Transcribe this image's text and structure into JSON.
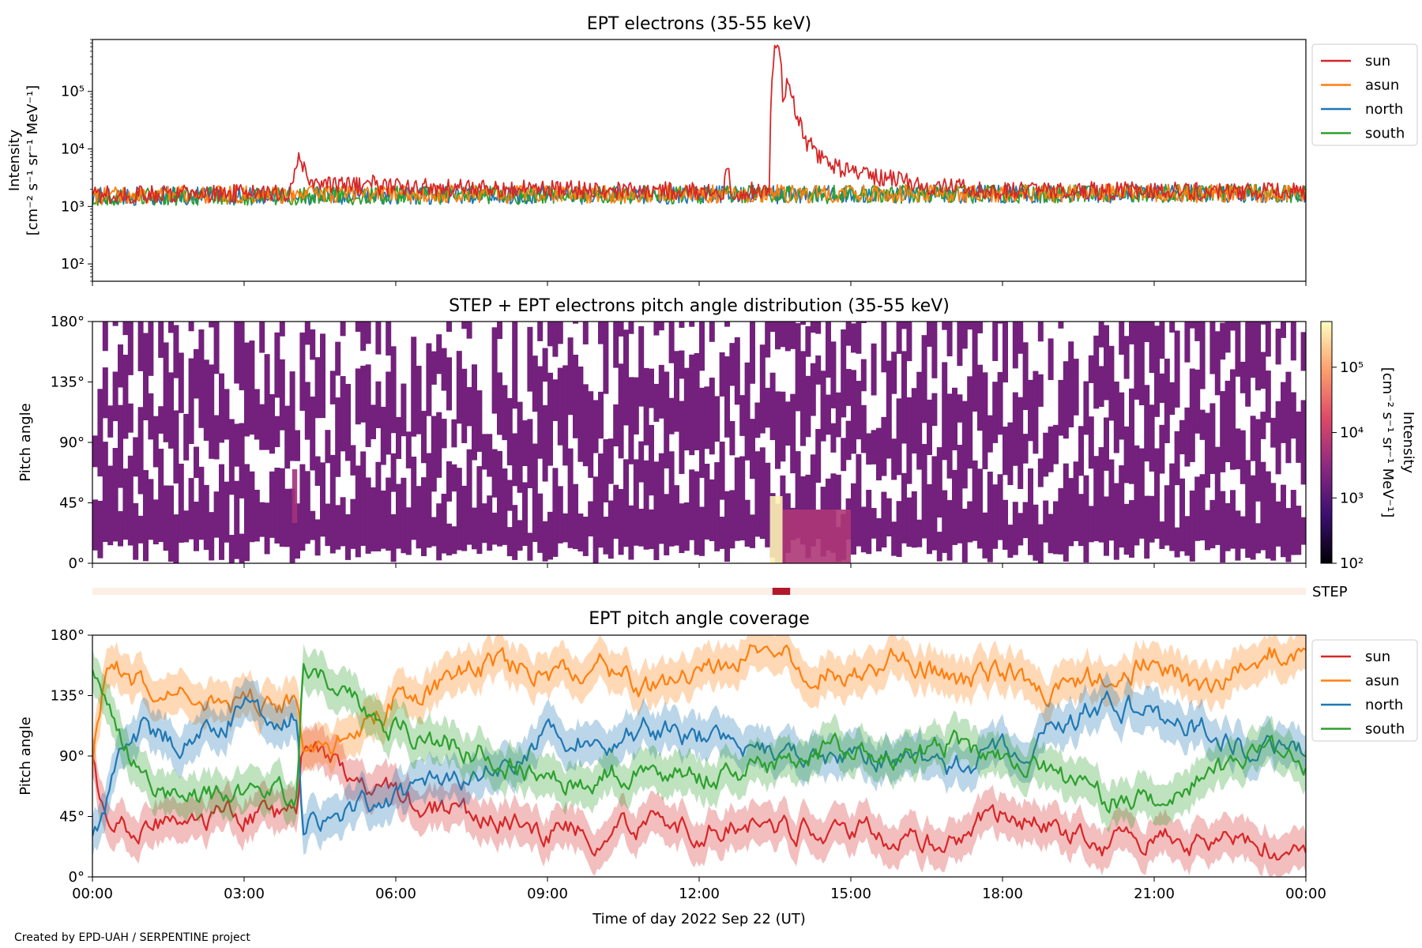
{
  "credit": "Created by EPD-UAH / SERPENTINE project",
  "colors": {
    "sun": "#d62728",
    "asun": "#ff7f0e",
    "north": "#1f77b4",
    "south": "#2ca02c",
    "step_bar": "#fdeee6",
    "step_event": "#b2182b"
  },
  "chart_data": [
    {
      "type": "line",
      "title": "EPT electrons (35-55 keV)",
      "ylabel": "Intensity",
      "yunit": "[cm⁻² s⁻¹ sr⁻¹ MeV⁻¹]",
      "yscale": "log",
      "ylim": [
        50,
        800000
      ],
      "yticks": [
        {
          "v": 100,
          "label": "10²"
        },
        {
          "v": 1000,
          "label": "10³"
        },
        {
          "v": 10000,
          "label": "10⁴"
        },
        {
          "v": 100000,
          "label": "10⁵"
        }
      ],
      "xlim": [
        0,
        24
      ],
      "xticks_hours": [
        0,
        3,
        6,
        9,
        12,
        15,
        18,
        21,
        24
      ],
      "legend_position": "outside-right",
      "baseline_intensity": 1700,
      "series": [
        {
          "name": "sun",
          "key": "sun",
          "points": [
            [
              0,
              1600
            ],
            [
              3.9,
              1700
            ],
            [
              4.0,
              3500
            ],
            [
              4.1,
              8000
            ],
            [
              4.25,
              2300
            ],
            [
              5.5,
              2200
            ],
            [
              5.55,
              4200
            ],
            [
              5.65,
              2200
            ],
            [
              12.5,
              1800
            ],
            [
              12.55,
              6500
            ],
            [
              12.62,
              1800
            ],
            [
              13.4,
              1900
            ],
            [
              13.45,
              200000
            ],
            [
              13.5,
              480000
            ],
            [
              13.58,
              500000
            ],
            [
              13.65,
              70000
            ],
            [
              13.75,
              150000
            ],
            [
              13.9,
              40000
            ],
            [
              14.1,
              14000
            ],
            [
              14.4,
              7000
            ],
            [
              14.8,
              4500
            ],
            [
              15.2,
              4000
            ],
            [
              15.6,
              3200
            ],
            [
              16.2,
              2500
            ],
            [
              17,
              2100
            ],
            [
              18,
              1900
            ],
            [
              24,
              1800
            ]
          ]
        },
        {
          "name": "asun",
          "key": "asun",
          "points": [
            [
              0,
              1600
            ],
            [
              24,
              1700
            ]
          ]
        },
        {
          "name": "north",
          "key": "north",
          "points": [
            [
              0,
              1500
            ],
            [
              24,
              1700
            ]
          ]
        },
        {
          "name": "south",
          "key": "south",
          "points": [
            [
              0,
              1500
            ],
            [
              24,
              1700
            ]
          ]
        }
      ]
    },
    {
      "type": "heatmap",
      "title": "STEP + EPT electrons pitch angle distribution (35-55 keV)",
      "ylabel": "Pitch angle",
      "ylim": [
        0,
        180
      ],
      "yticks": [
        {
          "v": 0,
          "label": "0°"
        },
        {
          "v": 45,
          "label": "45°"
        },
        {
          "v": 90,
          "label": "90°"
        },
        {
          "v": 135,
          "label": "135°"
        },
        {
          "v": 180,
          "label": "180°"
        }
      ],
      "xlim": [
        0,
        24
      ],
      "colorbar": {
        "label": "Intensity",
        "unit": "[cm⁻² s⁻¹ sr⁻¹ MeV⁻¹]",
        "scale": "log",
        "range": [
          100,
          500000
        ],
        "ticks": [
          {
            "v": 100,
            "label": "10²"
          },
          {
            "v": 1000,
            "label": "10³"
          },
          {
            "v": 10000,
            "label": "10⁴"
          },
          {
            "v": 100000,
            "label": "10⁵"
          }
        ]
      },
      "typical_intensity": 1800,
      "enhancements": [
        {
          "t0": 3.95,
          "t1": 4.05,
          "pa0": 30,
          "pa1": 70,
          "intensity": 5000
        },
        {
          "t0": 13.4,
          "t1": 13.65,
          "pa0": 0,
          "pa1": 50,
          "intensity": 400000
        },
        {
          "t0": 13.65,
          "t1": 15.0,
          "pa0": 0,
          "pa1": 40,
          "intensity": 6000
        }
      ],
      "step_indicator": {
        "label": "STEP",
        "event": [
          13.45,
          13.8
        ]
      }
    },
    {
      "type": "line",
      "title": "EPT pitch angle coverage",
      "ylabel": "Pitch angle",
      "xlabel": "Time of day 2022 Sep 22 (UT)",
      "ylim": [
        0,
        180
      ],
      "yticks": [
        {
          "v": 0,
          "label": "0°"
        },
        {
          "v": 45,
          "label": "45°"
        },
        {
          "v": 90,
          "label": "90°"
        },
        {
          "v": 135,
          "label": "135°"
        },
        {
          "v": 180,
          "label": "180°"
        }
      ],
      "xlim": [
        0,
        24
      ],
      "xticks": [
        "00:00",
        "03:00",
        "06:00",
        "09:00",
        "12:00",
        "15:00",
        "18:00",
        "21:00",
        "00:00"
      ],
      "legend_position": "outside-right",
      "band_halfwidth_deg": 15,
      "series": [
        {
          "name": "sun",
          "key": "sun",
          "points": [
            [
              0,
              90
            ],
            [
              0.3,
              30
            ],
            [
              1,
              40
            ],
            [
              2,
              45
            ],
            [
              3,
              45
            ],
            [
              4.05,
              45
            ],
            [
              4.15,
              90
            ],
            [
              5,
              80
            ],
            [
              6,
              60
            ],
            [
              7,
              50
            ],
            [
              8,
              40
            ],
            [
              9,
              35
            ],
            [
              10,
              30
            ],
            [
              11,
              40
            ],
            [
              12,
              35
            ],
            [
              13,
              40
            ],
            [
              14,
              35
            ],
            [
              15,
              40
            ],
            [
              16,
              25
            ],
            [
              17,
              30
            ],
            [
              18,
              45
            ],
            [
              19,
              35
            ],
            [
              20,
              25
            ],
            [
              21,
              30
            ],
            [
              22,
              25
            ],
            [
              23,
              30
            ],
            [
              24,
              10
            ]
          ]
        },
        {
          "name": "asun",
          "key": "asun",
          "points": [
            [
              0,
              90
            ],
            [
              0.3,
              155
            ],
            [
              1,
              145
            ],
            [
              2,
              135
            ],
            [
              3,
              130
            ],
            [
              4.05,
              130
            ],
            [
              4.15,
              90
            ],
            [
              5,
              100
            ],
            [
              6,
              130
            ],
            [
              7,
              145
            ],
            [
              8,
              160
            ],
            [
              9,
              150
            ],
            [
              10,
              160
            ],
            [
              11,
              140
            ],
            [
              12,
              150
            ],
            [
              13,
              165
            ],
            [
              14,
              160
            ],
            [
              15,
              150
            ],
            [
              16,
              165
            ],
            [
              17,
              145
            ],
            [
              18,
              155
            ],
            [
              19,
              140
            ],
            [
              20,
              150
            ],
            [
              21,
              160
            ],
            [
              22,
              140
            ],
            [
              23,
              165
            ],
            [
              24,
              170
            ]
          ]
        },
        {
          "name": "north",
          "key": "north",
          "points": [
            [
              0,
              25
            ],
            [
              0.5,
              80
            ],
            [
              1,
              110
            ],
            [
              2,
              100
            ],
            [
              3,
              125
            ],
            [
              4.05,
              120
            ],
            [
              4.15,
              40
            ],
            [
              5,
              50
            ],
            [
              6,
              60
            ],
            [
              7,
              70
            ],
            [
              8,
              80
            ],
            [
              9,
              110
            ],
            [
              10,
              100
            ],
            [
              11,
              110
            ],
            [
              12,
              105
            ],
            [
              13,
              95
            ],
            [
              14,
              90
            ],
            [
              15,
              85
            ],
            [
              16,
              90
            ],
            [
              17,
              80
            ],
            [
              18,
              90
            ],
            [
              19,
              110
            ],
            [
              20,
              130
            ],
            [
              21,
              120
            ],
            [
              22,
              110
            ],
            [
              23,
              95
            ],
            [
              24,
              90
            ]
          ]
        },
        {
          "name": "south",
          "key": "south",
          "points": [
            [
              0,
              160
            ],
            [
              0.5,
              100
            ],
            [
              1,
              70
            ],
            [
              2,
              60
            ],
            [
              3,
              60
            ],
            [
              4.05,
              60
            ],
            [
              4.15,
              160
            ],
            [
              5,
              140
            ],
            [
              6,
              110
            ],
            [
              7,
              100
            ],
            [
              8,
              90
            ],
            [
              9,
              70
            ],
            [
              10,
              75
            ],
            [
              11,
              80
            ],
            [
              12,
              75
            ],
            [
              13,
              80
            ],
            [
              14,
              90
            ],
            [
              15,
              95
            ],
            [
              16,
              90
            ],
            [
              17,
              100
            ],
            [
              18,
              90
            ],
            [
              19,
              75
            ],
            [
              20,
              60
            ],
            [
              21,
              55
            ],
            [
              22,
              75
            ],
            [
              23,
              90
            ],
            [
              24,
              85
            ]
          ]
        }
      ]
    }
  ]
}
